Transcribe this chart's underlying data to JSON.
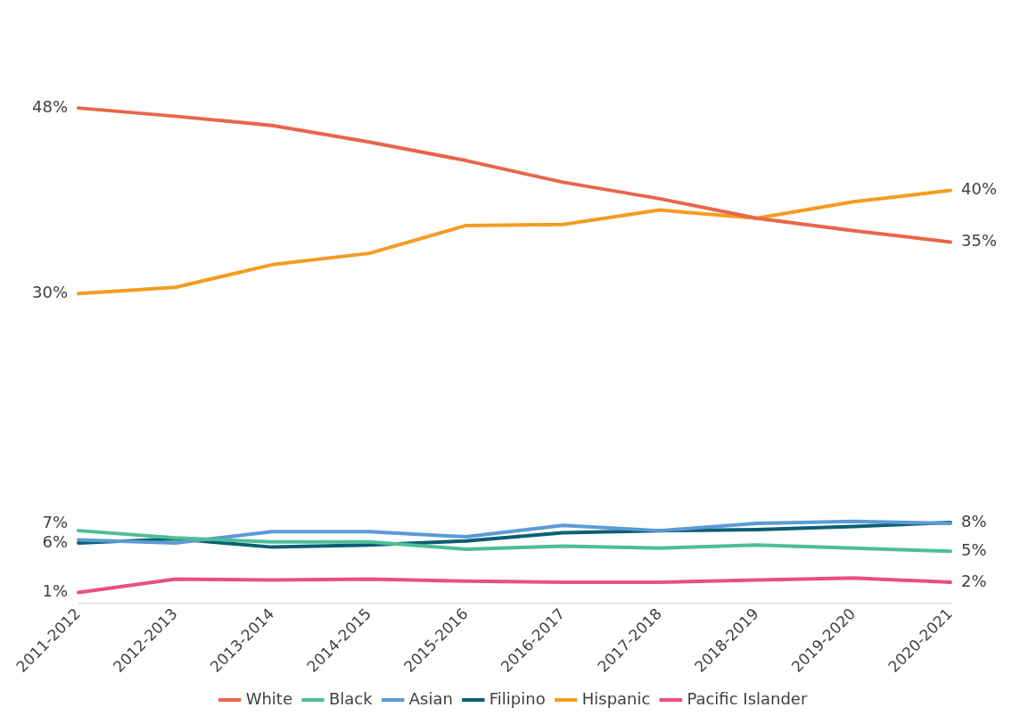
{
  "chart_data": {
    "type": "line",
    "categories": [
      "2011-2012",
      "2012-2013",
      "2013-2014",
      "2014-2015",
      "2015-2016",
      "2016-2017",
      "2017-2018",
      "2018-2019",
      "2019-2020",
      "2020-2021"
    ],
    "series": [
      {
        "name": "White",
        "color": "#e8664a",
        "values": [
          48,
          47.2,
          46.3,
          44.7,
          42.9,
          40.8,
          39.2,
          37.3,
          36.1,
          35
        ],
        "value_labels": [
          "48%",
          null,
          null,
          null,
          null,
          null,
          null,
          null,
          null,
          "35%"
        ]
      },
      {
        "name": "Black",
        "color": "#4dbf94",
        "values": [
          7,
          6.3,
          5.9,
          5.9,
          5.2,
          5.5,
          5.3,
          5.6,
          5.3,
          5
        ],
        "value_labels": [
          "7%",
          null,
          null,
          null,
          null,
          null,
          null,
          null,
          null,
          "5%"
        ]
      },
      {
        "name": "Asian",
        "color": "#5b9bd5",
        "values": [
          6.1,
          5.8,
          6.9,
          6.9,
          6.4,
          7.5,
          7,
          7.7,
          7.9,
          7.7
        ]
      },
      {
        "name": "Filipino",
        "color": "#0b5f73",
        "values": [
          5.8,
          6.2,
          5.4,
          5.6,
          6,
          6.8,
          7,
          7.1,
          7.4,
          7.8
        ],
        "value_labels": [
          "6%",
          null,
          null,
          null,
          null,
          null,
          null,
          null,
          null,
          "8%"
        ]
      },
      {
        "name": "Hispanic",
        "color": "#f59c23",
        "values": [
          30,
          30.6,
          32.8,
          33.9,
          36.6,
          36.7,
          38.1,
          37.3,
          38.9,
          40
        ],
        "value_labels": [
          "30%",
          null,
          null,
          null,
          null,
          null,
          null,
          null,
          null,
          "40%"
        ]
      },
      {
        "name": "Pacific Islander",
        "color": "#e9507f",
        "values": [
          1,
          2.3,
          2.2,
          2.3,
          2.1,
          2,
          2,
          2.2,
          2.4,
          2
        ],
        "value_labels": [
          "1%",
          null,
          null,
          null,
          null,
          null,
          null,
          null,
          null,
          "2%"
        ]
      }
    ],
    "tick_labels": "x",
    "grid": false,
    "legend": "bottom",
    "marker": "none",
    "line_style": "solid"
  }
}
